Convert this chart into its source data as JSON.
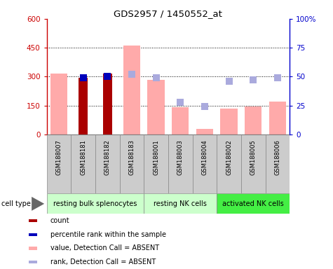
{
  "title": "GDS2957 / 1450552_at",
  "samples": [
    "GSM188007",
    "GSM188181",
    "GSM188182",
    "GSM188183",
    "GSM188001",
    "GSM188003",
    "GSM188004",
    "GSM188002",
    "GSM188005",
    "GSM188006"
  ],
  "cell_types": [
    {
      "label": "resting bulk splenocytes",
      "start": 0,
      "end": 4,
      "color": "#ccffcc"
    },
    {
      "label": "resting NK cells",
      "start": 4,
      "end": 7,
      "color": "#ccffcc"
    },
    {
      "label": "activated NK cells",
      "start": 7,
      "end": 10,
      "color": "#44ee44"
    }
  ],
  "value_absent": [
    315,
    null,
    null,
    460,
    285,
    140,
    30,
    135,
    145,
    170
  ],
  "rank_absent_pct": [
    null,
    null,
    null,
    52,
    49,
    28,
    24,
    46,
    47,
    49
  ],
  "count_present": [
    null,
    295,
    315,
    null,
    null,
    null,
    null,
    null,
    null,
    null
  ],
  "percentile_present_pct": [
    null,
    49,
    50,
    null,
    null,
    null,
    null,
    null,
    null,
    null
  ],
  "ylim_left": [
    0,
    600
  ],
  "ylim_right": [
    0,
    100
  ],
  "yticks_left": [
    0,
    150,
    300,
    450,
    600
  ],
  "ytick_labels_left": [
    "0",
    "150",
    "300",
    "450",
    "600"
  ],
  "yticks_right": [
    0,
    25,
    50,
    75,
    100
  ],
  "ytick_labels_right": [
    "0",
    "25",
    "50",
    "75",
    "100%"
  ],
  "color_count": "#aa0000",
  "color_percentile": "#0000bb",
  "color_value_absent": "#ffaaaa",
  "color_rank_absent": "#aaaadd",
  "bar_width": 0.7,
  "dot_size": 55,
  "legend_items": [
    {
      "label": "count",
      "color": "#aa0000"
    },
    {
      "label": "percentile rank within the sample",
      "color": "#0000bb"
    },
    {
      "label": "value, Detection Call = ABSENT",
      "color": "#ffaaaa"
    },
    {
      "label": "rank, Detection Call = ABSENT",
      "color": "#aaaadd"
    }
  ]
}
